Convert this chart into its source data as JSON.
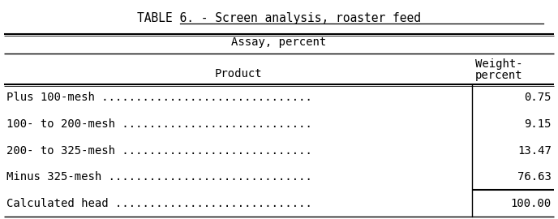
{
  "title": "TABLE 6. - Screen analysis, roaster feed",
  "title_underline_start": "Screen analysis, roaster feed",
  "assay_header": "Assay, percent",
  "weight_header_line1": "Weight-",
  "weight_header_line2": "percent",
  "product_label": "Product",
  "rows": [
    [
      "Plus 100-mesh ...............................",
      "0.75"
    ],
    [
      "100- to 200-mesh ............................",
      "9.15"
    ],
    [
      "200- to 325-mesh ............................",
      "13.47"
    ],
    [
      "Minus 325-mesh ..............................",
      "76.63"
    ],
    [
      "Calculated head .............................",
      "100.00"
    ]
  ],
  "bg_color": "#ffffff",
  "text_color": "#000000",
  "font_family": "monospace",
  "title_fontsize": 10.5,
  "header_fontsize": 10,
  "body_fontsize": 10,
  "figsize": [
    6.88,
    2.7
  ],
  "dpi": 100
}
